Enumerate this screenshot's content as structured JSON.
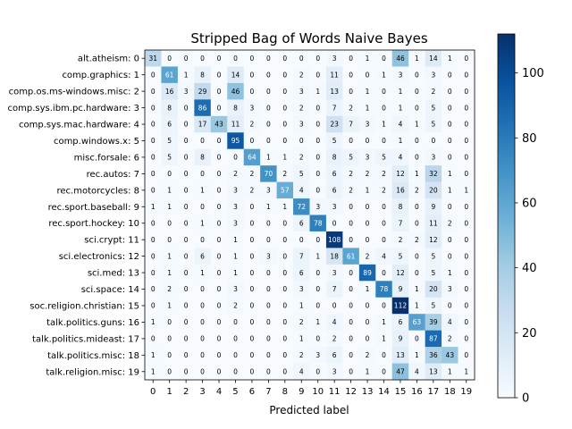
{
  "chart_data": {
    "type": "heatmap",
    "title": "Stripped Bag of Words Naive Bayes",
    "xlabel": "Predicted label",
    "ylabel": "",
    "x_ticks": [
      "0",
      "1",
      "2",
      "3",
      "4",
      "5",
      "6",
      "7",
      "8",
      "9",
      "10",
      "11",
      "12",
      "13",
      "14",
      "15",
      "16",
      "17",
      "18",
      "19"
    ],
    "y_ticks": [
      "alt.atheism: 0",
      "comp.graphics: 1",
      "comp.os.ms-windows.misc: 2",
      "comp.sys.ibm.pc.hardware: 3",
      "comp.sys.mac.hardware: 4",
      "comp.windows.x: 5",
      "misc.forsale: 6",
      "rec.autos: 7",
      "rec.motorcycles: 8",
      "rec.sport.baseball: 9",
      "rec.sport.hockey: 10",
      "sci.crypt: 11",
      "sci.electronics: 12",
      "sci.med: 13",
      "sci.space: 14",
      "soc.religion.christian: 15",
      "talk.politics.guns: 16",
      "talk.politics.mideast: 17",
      "talk.politics.misc: 18",
      "talk.religion.misc: 19"
    ],
    "matrix": [
      [
        31,
        0,
        0,
        0,
        0,
        0,
        0,
        0,
        0,
        0,
        0,
        3,
        0,
        1,
        0,
        46,
        1,
        14,
        1,
        0
      ],
      [
        0,
        61,
        1,
        8,
        0,
        14,
        0,
        0,
        0,
        2,
        0,
        11,
        0,
        0,
        1,
        3,
        0,
        3,
        0,
        0
      ],
      [
        0,
        16,
        3,
        29,
        0,
        46,
        0,
        0,
        0,
        3,
        1,
        13,
        0,
        1,
        0,
        1,
        0,
        2,
        0,
        0
      ],
      [
        0,
        8,
        0,
        86,
        0,
        8,
        3,
        0,
        0,
        2,
        0,
        7,
        2,
        1,
        0,
        1,
        0,
        5,
        0,
        0
      ],
      [
        0,
        6,
        0,
        17,
        43,
        11,
        2,
        0,
        0,
        3,
        0,
        23,
        7,
        3,
        1,
        4,
        1,
        5,
        0,
        0
      ],
      [
        0,
        5,
        0,
        0,
        0,
        95,
        0,
        0,
        0,
        0,
        0,
        5,
        0,
        0,
        0,
        1,
        0,
        0,
        0,
        0
      ],
      [
        0,
        5,
        0,
        8,
        0,
        0,
        64,
        1,
        1,
        2,
        0,
        8,
        5,
        3,
        5,
        4,
        0,
        3,
        0,
        0
      ],
      [
        0,
        0,
        0,
        0,
        0,
        2,
        2,
        70,
        2,
        5,
        0,
        6,
        2,
        2,
        2,
        12,
        1,
        32,
        1,
        0
      ],
      [
        0,
        1,
        0,
        1,
        0,
        3,
        2,
        3,
        57,
        4,
        0,
        6,
        2,
        1,
        2,
        16,
        2,
        20,
        1,
        1
      ],
      [
        1,
        1,
        0,
        0,
        0,
        3,
        0,
        1,
        1,
        72,
        3,
        3,
        0,
        0,
        0,
        8,
        0,
        9,
        0,
        0
      ],
      [
        0,
        0,
        0,
        1,
        0,
        3,
        0,
        0,
        0,
        6,
        78,
        0,
        0,
        0,
        0,
        7,
        0,
        11,
        2,
        0
      ],
      [
        0,
        0,
        0,
        0,
        0,
        1,
        0,
        0,
        0,
        0,
        0,
        108,
        0,
        0,
        0,
        2,
        2,
        12,
        0,
        0
      ],
      [
        0,
        1,
        0,
        6,
        0,
        1,
        0,
        3,
        0,
        7,
        1,
        18,
        61,
        2,
        4,
        5,
        0,
        5,
        0,
        0
      ],
      [
        0,
        1,
        0,
        1,
        0,
        1,
        0,
        0,
        0,
        6,
        0,
        3,
        0,
        89,
        0,
        12,
        0,
        5,
        1,
        0
      ],
      [
        0,
        2,
        0,
        0,
        0,
        3,
        0,
        0,
        0,
        3,
        0,
        7,
        0,
        1,
        78,
        9,
        1,
        20,
        3,
        0
      ],
      [
        0,
        1,
        0,
        0,
        0,
        2,
        0,
        0,
        0,
        1,
        0,
        0,
        0,
        0,
        0,
        112,
        1,
        5,
        0,
        0
      ],
      [
        1,
        0,
        0,
        0,
        0,
        0,
        0,
        0,
        0,
        2,
        1,
        4,
        0,
        0,
        1,
        6,
        63,
        39,
        4,
        0
      ],
      [
        0,
        0,
        0,
        0,
        0,
        0,
        0,
        0,
        0,
        1,
        0,
        2,
        0,
        0,
        1,
        9,
        0,
        87,
        2,
        0
      ],
      [
        1,
        0,
        0,
        0,
        0,
        0,
        0,
        0,
        0,
        2,
        3,
        6,
        0,
        2,
        0,
        13,
        1,
        36,
        43,
        0
      ],
      [
        1,
        0,
        0,
        0,
        0,
        0,
        0,
        0,
        0,
        4,
        0,
        3,
        0,
        1,
        0,
        47,
        4,
        13,
        1,
        1
      ]
    ],
    "colorbar": {
      "colormap": "Blues",
      "min": 0,
      "max": 112,
      "ticks": [
        0,
        20,
        40,
        60,
        80,
        100
      ]
    },
    "grid": false,
    "legend": "none"
  }
}
